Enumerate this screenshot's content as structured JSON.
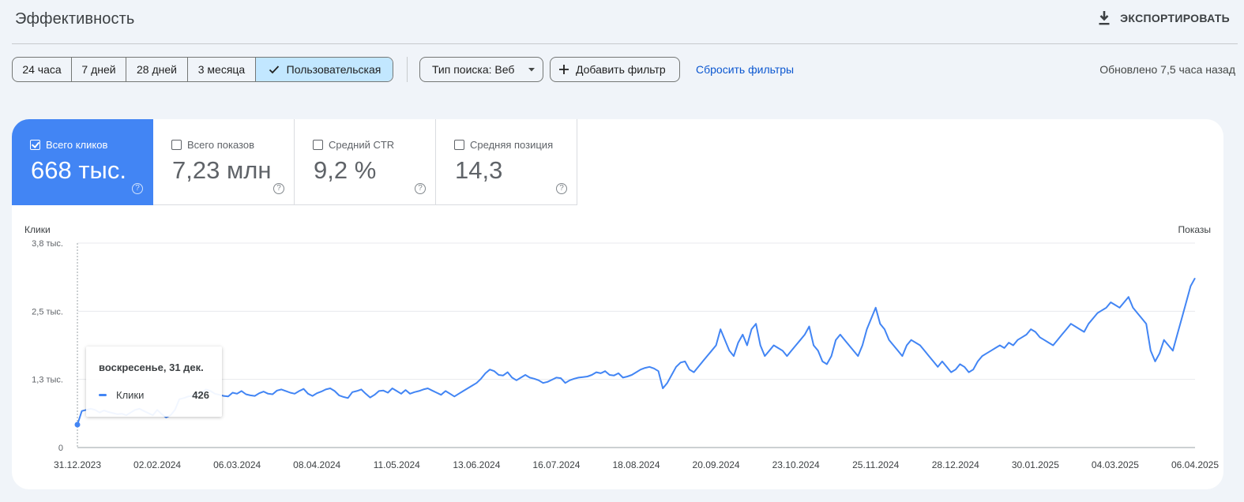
{
  "header": {
    "title": "Эффективность",
    "export_label": "ЭКСПОРТИРОВАТЬ"
  },
  "filters": {
    "ranges": [
      "24 часа",
      "7 дней",
      "28 дней",
      "3 месяца",
      "Пользовательская"
    ],
    "selected_range": "Пользовательская",
    "search_type": "Тип поиска: Веб",
    "add_filter": "Добавить фильтр",
    "reset": "Сбросить фильтры",
    "updated": "Обновлено 7,5 часа назад"
  },
  "metrics": [
    {
      "label": "Всего кликов",
      "value": "668 тыс.",
      "checked": true
    },
    {
      "label": "Всего показов",
      "value": "7,23 млн",
      "checked": false
    },
    {
      "label": "Средний CTR",
      "value": "9,2 %",
      "checked": false
    },
    {
      "label": "Средняя позиция",
      "value": "14,3",
      "checked": false
    }
  ],
  "colors": {
    "accent": "#4285f4",
    "selected_range_bg": "#c2e7ff",
    "link": "#0b57d0",
    "page_bg": "#f0f4f9"
  },
  "chart_data": {
    "type": "line",
    "left_axis_label": "Клики",
    "right_axis_label": "Показы",
    "y_ticks": [
      "0",
      "1,3 тыс.",
      "2,5 тыс.",
      "3,8 тыс."
    ],
    "ylim": [
      0,
      3800
    ],
    "x_ticks": [
      "31.12.2023",
      "02.02.2024",
      "06.03.2024",
      "08.04.2024",
      "11.05.2024",
      "13.06.2024",
      "16.07.2024",
      "18.08.2024",
      "20.09.2024",
      "23.10.2024",
      "25.11.2024",
      "28.12.2024",
      "30.01.2025",
      "04.03.2025",
      "06.04.2025"
    ],
    "grid": true,
    "series": [
      {
        "name": "Клики",
        "color": "#4285f4",
        "values": [
          426,
          680,
          700,
          720,
          700,
          650,
          690,
          660,
          640,
          620,
          630,
          600,
          650,
          700,
          720,
          680,
          640,
          600,
          700,
          620,
          560,
          600,
          700,
          900,
          920,
          950,
          960,
          1000,
          1010,
          1080,
          1050,
          1000,
          980,
          960,
          950,
          1020,
          1000,
          1050,
          990,
          970,
          960,
          1010,
          1040,
          1000,
          990,
          1060,
          1080,
          1050,
          1020,
          1000,
          1050,
          1090,
          1000,
          960,
          1010,
          1040,
          1080,
          1100,
          1050,
          970,
          940,
          920,
          1030,
          1050,
          1080,
          1000,
          930,
          980,
          1050,
          1060,
          1020,
          1100,
          1050,
          1000,
          1070,
          1000,
          1030,
          1050,
          1080,
          1100,
          1060,
          1020,
          980,
          1050,
          1000,
          950,
          1000,
          1050,
          1100,
          1150,
          1200,
          1280,
          1380,
          1450,
          1420,
          1350,
          1340,
          1400,
          1300,
          1250,
          1300,
          1350,
          1300,
          1280,
          1250,
          1200,
          1220,
          1260,
          1300,
          1290,
          1200,
          1250,
          1280,
          1300,
          1310,
          1320,
          1350,
          1400,
          1380,
          1420,
          1350,
          1340,
          1380,
          1300,
          1320,
          1350,
          1400,
          1450,
          1480,
          1500,
          1470,
          1420,
          1100,
          1200,
          1350,
          1500,
          1580,
          1600,
          1450,
          1400,
          1500,
          1600,
          1700,
          1800,
          1900,
          2200,
          2000,
          1800,
          1700,
          1950,
          2100,
          1900,
          2200,
          2300,
          1900,
          1700,
          1800,
          1900,
          1850,
          1800,
          1700,
          1800,
          1900,
          2000,
          2100,
          2250,
          1900,
          1800,
          1600,
          1550,
          1700,
          2000,
          2100,
          2000,
          1900,
          1800,
          1700,
          1900,
          2200,
          2400,
          2600,
          2300,
          2200,
          2000,
          1900,
          1800,
          1700,
          1900,
          2000,
          1950,
          1900,
          1800,
          1700,
          1600,
          1500,
          1600,
          1500,
          1400,
          1450,
          1550,
          1500,
          1400,
          1450,
          1600,
          1700,
          1750,
          1800,
          1850,
          1900,
          1850,
          1950,
          1900,
          2000,
          2050,
          2100,
          2200,
          2150,
          2050,
          2000,
          1950,
          1900,
          2000,
          2100,
          2200,
          2300,
          2250,
          2200,
          2150,
          2300,
          2400,
          2500,
          2550,
          2600,
          2700,
          2650,
          2600,
          2700,
          2800,
          2600,
          2500,
          2400,
          2300,
          1800,
          1600,
          1750,
          2000,
          1900,
          1800,
          2100,
          2400,
          2700,
          3000,
          3150
        ]
      }
    ]
  },
  "tooltip": {
    "date": "воскресенье, 31 дек.",
    "series_name": "Клики",
    "value": "426"
  }
}
